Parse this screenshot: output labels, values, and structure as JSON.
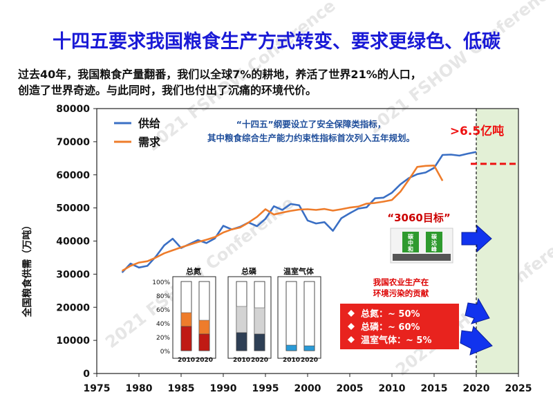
{
  "title": "十四五要求我国粮食生产方式转变、要求更绿色、低碳",
  "subtitle_lines": [
    "过去40年，我国粮食产量翻番，我们以全球7%的耕地，养活了世界21%的人口，",
    "创造了世界奇迹。与此同时，我们也付出了沉痛的环境代价。"
  ],
  "watermark_text": "2021 FSHOW Conference",
  "colors": {
    "title": "#1a1ad6",
    "supply": "#3a6fc4",
    "demand": "#ee7c2b",
    "projection_band": "#e3f0d6",
    "target_line": "#ee1111",
    "note_text": "#1f4e9b",
    "red_box": "#e8231e",
    "arrow": "#1133ee"
  },
  "chart_data": {
    "type": "line",
    "xlim": [
      1975,
      2025
    ],
    "ylim": [
      0,
      80000
    ],
    "xticks": [
      1975,
      1980,
      1985,
      1990,
      1995,
      2000,
      2005,
      2010,
      2015,
      2020,
      2025
    ],
    "yticks": [
      0,
      10000,
      20000,
      30000,
      40000,
      50000,
      60000,
      70000,
      80000
    ],
    "ylabel": "全国粮食供需（万吨）",
    "legend": [
      "供给",
      "需求"
    ],
    "legend_position": "top-left",
    "series": [
      {
        "name": "供给",
        "x": [
          1978,
          1979,
          1980,
          1981,
          1982,
          1983,
          1984,
          1985,
          1986,
          1987,
          1988,
          1989,
          1990,
          1991,
          1992,
          1993,
          1994,
          1995,
          1996,
          1997,
          1998,
          1999,
          2000,
          2001,
          2002,
          2003,
          2004,
          2005,
          2006,
          2007,
          2008,
          2009,
          2010,
          2011,
          2012,
          2013,
          2014,
          2015,
          2016,
          2017,
          2018,
          2019,
          2020
        ],
        "values": [
          30500,
          33200,
          32000,
          32500,
          35300,
          38700,
          40700,
          37900,
          39100,
          40300,
          39400,
          40800,
          44600,
          43500,
          44300,
          45600,
          44500,
          46700,
          50500,
          49400,
          51200,
          50800,
          46200,
          45300,
          45700,
          43100,
          46900,
          48400,
          49800,
          50200,
          52900,
          53100,
          54600,
          57100,
          59000,
          60200,
          60700,
          62100,
          66000,
          66100,
          65800,
          66400,
          66900
        ]
      },
      {
        "name": "需求",
        "x": [
          1978,
          1979,
          1980,
          1981,
          1982,
          1983,
          1984,
          1985,
          1986,
          1987,
          1988,
          1989,
          1990,
          1991,
          1992,
          1993,
          1994,
          1995,
          1996,
          1997,
          1998,
          1999,
          2000,
          2001,
          2002,
          2003,
          2004,
          2005,
          2006,
          2007,
          2008,
          2009,
          2010,
          2011,
          2012,
          2013,
          2014,
          2015,
          2016
        ],
        "values": [
          31000,
          32500,
          33500,
          33900,
          35000,
          36300,
          37200,
          38100,
          38900,
          39700,
          40400,
          41200,
          42600,
          43500,
          44100,
          45600,
          47300,
          49600,
          48000,
          48600,
          49100,
          49500,
          49600,
          49400,
          49700,
          49200,
          49600,
          50100,
          50400,
          51300,
          51500,
          51900,
          52400,
          54900,
          58500,
          62400,
          62700,
          62800,
          58200
        ]
      }
    ],
    "target_label": ">6.5亿吨",
    "target_value": 65000,
    "projection_region": [
      2020,
      2025
    ],
    "annotation_text_lines": [
      "“十四五”纲要设立了安全保障类指标，",
      "其中粮食综合生产能力约束性指标首次列入五年规划。"
    ],
    "goal_label": "“3060目标”",
    "goal_badge_left": [
      "碳",
      "中",
      "和"
    ],
    "goal_badge_right": [
      "碳",
      "达",
      "峰"
    ],
    "inset_bars": [
      {
        "title": "总氮",
        "categories": [
          "2010",
          "2020"
        ],
        "colored_share": [
          35,
          24
        ],
        "light_share": [
          20,
          20
        ],
        "colored_color": "#c01a14",
        "light_color": "#ee7c2b"
      },
      {
        "title": "总磷",
        "categories": [
          "2010",
          "2020"
        ],
        "colored_share": [
          26,
          24
        ],
        "light_share": [
          38,
          38
        ],
        "colored_color": "#2e3f55",
        "light_color": "#d3d3d3"
      },
      {
        "title": "温室气体",
        "categories": [
          "2010",
          "2020"
        ],
        "colored_share": [
          8,
          7
        ],
        "light_share": [
          0,
          0
        ],
        "colored_color": "#2a9ad6",
        "light_color": "#d3d3d3"
      }
    ],
    "inset_yticks": [
      "100%",
      "80%",
      "60%",
      "40%",
      "20%",
      "0%"
    ],
    "contribution_title_lines": [
      "我国农业生产在",
      "环境污染的贡献"
    ],
    "contribution_items": [
      "总氮：~ 50%",
      "总磷：~ 60%",
      "温室气体：~ 5%"
    ]
  }
}
